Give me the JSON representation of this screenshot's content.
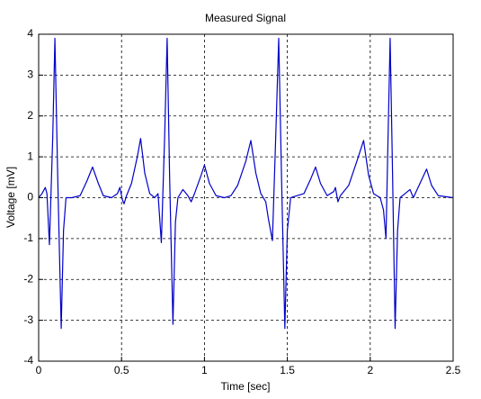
{
  "chart_data": {
    "type": "line",
    "title": "Measured Signal",
    "x_label": "Time [sec]",
    "y_label": "Voltage [mV]",
    "xlim": [
      0,
      2.5
    ],
    "ylim": [
      -4,
      4
    ],
    "xticks": [
      0,
      0.5,
      1,
      1.5,
      2,
      2.5
    ],
    "yticks": [
      -4,
      -3,
      -2,
      -1,
      0,
      1,
      2,
      3,
      4
    ],
    "grid": true,
    "x": [
      0,
      0.02,
      0.04,
      0.05,
      0.065,
      0.085,
      0.098,
      0.115,
      0.136,
      0.15,
      0.165,
      0.2,
      0.25,
      0.29,
      0.325,
      0.36,
      0.39,
      0.44,
      0.475,
      0.49,
      0.505,
      0.515,
      0.53,
      0.56,
      0.595,
      0.615,
      0.64,
      0.67,
      0.7,
      0.72,
      0.74,
      0.76,
      0.775,
      0.79,
      0.81,
      0.825,
      0.84,
      0.87,
      0.9,
      0.92,
      0.94,
      0.98,
      1.0,
      1.03,
      1.07,
      1.12,
      1.16,
      1.2,
      1.25,
      1.28,
      1.31,
      1.34,
      1.37,
      1.385,
      1.41,
      1.43,
      1.448,
      1.465,
      1.485,
      1.5,
      1.52,
      1.56,
      1.6,
      1.64,
      1.67,
      1.7,
      1.74,
      1.78,
      1.79,
      1.805,
      1.82,
      1.87,
      1.92,
      1.96,
      1.99,
      2.02,
      2.06,
      2.08,
      2.095,
      2.105,
      2.12,
      2.135,
      2.15,
      2.165,
      2.18,
      2.21,
      2.24,
      2.26,
      2.3,
      2.34,
      2.37,
      2.41,
      2.5
    ],
    "series": [
      {
        "color": "#0000c8",
        "values": [
          0,
          0.1,
          0.25,
          0.1,
          -1.15,
          1.5,
          3.9,
          0.5,
          -3.2,
          -0.8,
          0,
          0,
          0.05,
          0.4,
          0.75,
          0.35,
          0.05,
          0,
          0.1,
          0.25,
          -0.05,
          -0.15,
          0.05,
          0.35,
          1.0,
          1.45,
          0.6,
          0.1,
          0,
          0.1,
          -1.1,
          1.5,
          3.9,
          0.5,
          -3.1,
          -0.6,
          0,
          0.2,
          0.05,
          -0.1,
          0.1,
          0.55,
          0.8,
          0.35,
          0.05,
          0,
          0.05,
          0.3,
          0.9,
          1.4,
          0.6,
          0.1,
          -0.1,
          -0.5,
          -1.05,
          1.5,
          3.9,
          0.5,
          -3.2,
          -0.8,
          0,
          0.05,
          0.1,
          0.45,
          0.75,
          0.35,
          0.05,
          0.15,
          0.25,
          -0.1,
          0.05,
          0.3,
          0.9,
          1.4,
          0.55,
          0.1,
          0,
          -0.3,
          -1.0,
          1.0,
          3.9,
          0.5,
          -3.2,
          -0.8,
          0,
          0.1,
          0.2,
          0,
          0.35,
          0.7,
          0.3,
          0.05,
          0
        ]
      }
    ]
  }
}
